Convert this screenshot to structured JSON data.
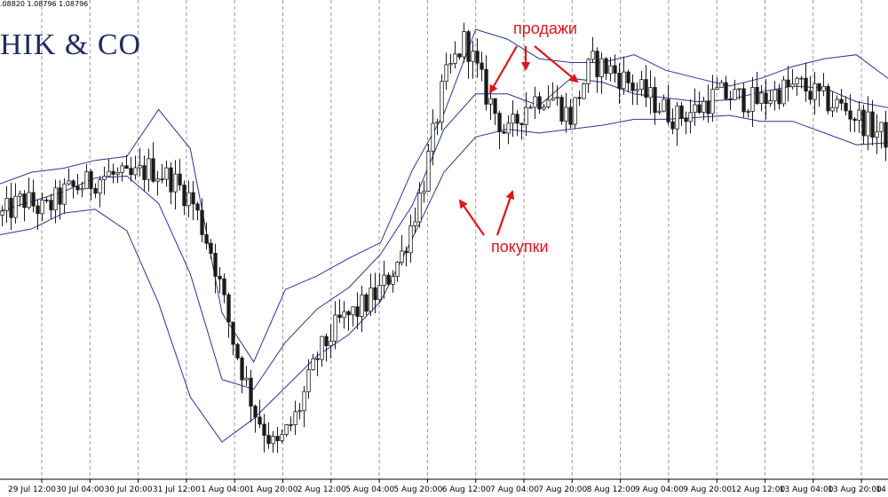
{
  "header": {
    "ohlc_text": ".08820 1.08796 1.08796",
    "brand": "HIK & CO"
  },
  "annotations": {
    "sell": "продажи",
    "buy": "покупки"
  },
  "colors": {
    "candle": "#1b1b1b",
    "band": "#24388f",
    "arrow": "#e0141b",
    "grid": "#9a9a9a"
  },
  "chart_data": {
    "type": "candlestick",
    "indicator": "Bollinger Bands",
    "grid": true,
    "x_tick_labels": [
      "29 Jul 12:00",
      "30 Jul 04:00",
      "30 Jul 20:00",
      "31 Jul 12:00",
      "1 Aug 04:00",
      "1 Aug 20:00",
      "2 Aug 12:00",
      "5 Aug 04:00",
      "5 Aug 20:00",
      "6 Aug 12:00",
      "7 Aug 04:00",
      "7 Aug 20:00",
      "8 Aug 12:00",
      "9 Aug 04:00",
      "9 Aug 20:00",
      "12 Aug 12:00",
      "13 Aug 04:00",
      "13 Aug 20:00",
      "14 Au"
    ],
    "price_path": [
      1.105,
      1.1058,
      1.1052,
      1.1062,
      1.1066,
      1.1071,
      1.1068,
      1.1074,
      1.1069,
      1.1058,
      1.103,
      1.0985,
      1.095,
      1.093,
      1.0948,
      1.0978,
      1.0995,
      1.1002,
      1.1012,
      1.103,
      1.1065,
      1.1118,
      1.114,
      1.1112,
      1.109,
      1.1108,
      1.1112,
      1.11,
      1.1128,
      1.1124,
      1.1116,
      1.1108,
      1.11,
      1.1104,
      1.1112,
      1.111,
      1.1108,
      1.1114,
      1.1116,
      1.1109,
      1.1105,
      1.1097,
      1.109
    ],
    "upper_band": [
      1.1066,
      1.1072,
      1.1074,
      1.1078,
      1.108,
      1.1104,
      1.1084,
      1.1,
      1.0975,
      1.1012,
      1.1019,
      1.1028,
      1.1036,
      1.1073,
      1.1102,
      1.1145,
      1.114,
      1.113,
      1.1128,
      1.1128,
      1.1132,
      1.1124,
      1.112,
      1.1116,
      1.112,
      1.1126,
      1.113,
      1.1132,
      1.112
    ],
    "middle_band": [
      1.1052,
      1.1057,
      1.1062,
      1.1069,
      1.107,
      1.1056,
      1.102,
      1.0966,
      1.0961,
      1.0985,
      1.1002,
      1.1013,
      1.103,
      1.1055,
      1.1094,
      1.1112,
      1.1112,
      1.1106,
      1.112,
      1.1118,
      1.1112,
      1.111,
      1.1108,
      1.1109,
      1.1113,
      1.1116,
      1.1115,
      1.1108,
      1.1105
    ],
    "lower_band": [
      1.104,
      1.1043,
      1.1051,
      1.1053,
      1.1042,
      1.1005,
      1.0957,
      1.0934,
      1.0946,
      1.0962,
      1.0978,
      1.0989,
      1.1006,
      1.1038,
      1.1072,
      1.109,
      1.1094,
      1.1092,
      1.1094,
      1.1096,
      1.1099,
      1.1099,
      1.11,
      1.1101,
      1.1098,
      1.1098,
      1.1092,
      1.1086,
      1.1087
    ],
    "ylim": [
      1.0915,
      1.116
    ]
  }
}
